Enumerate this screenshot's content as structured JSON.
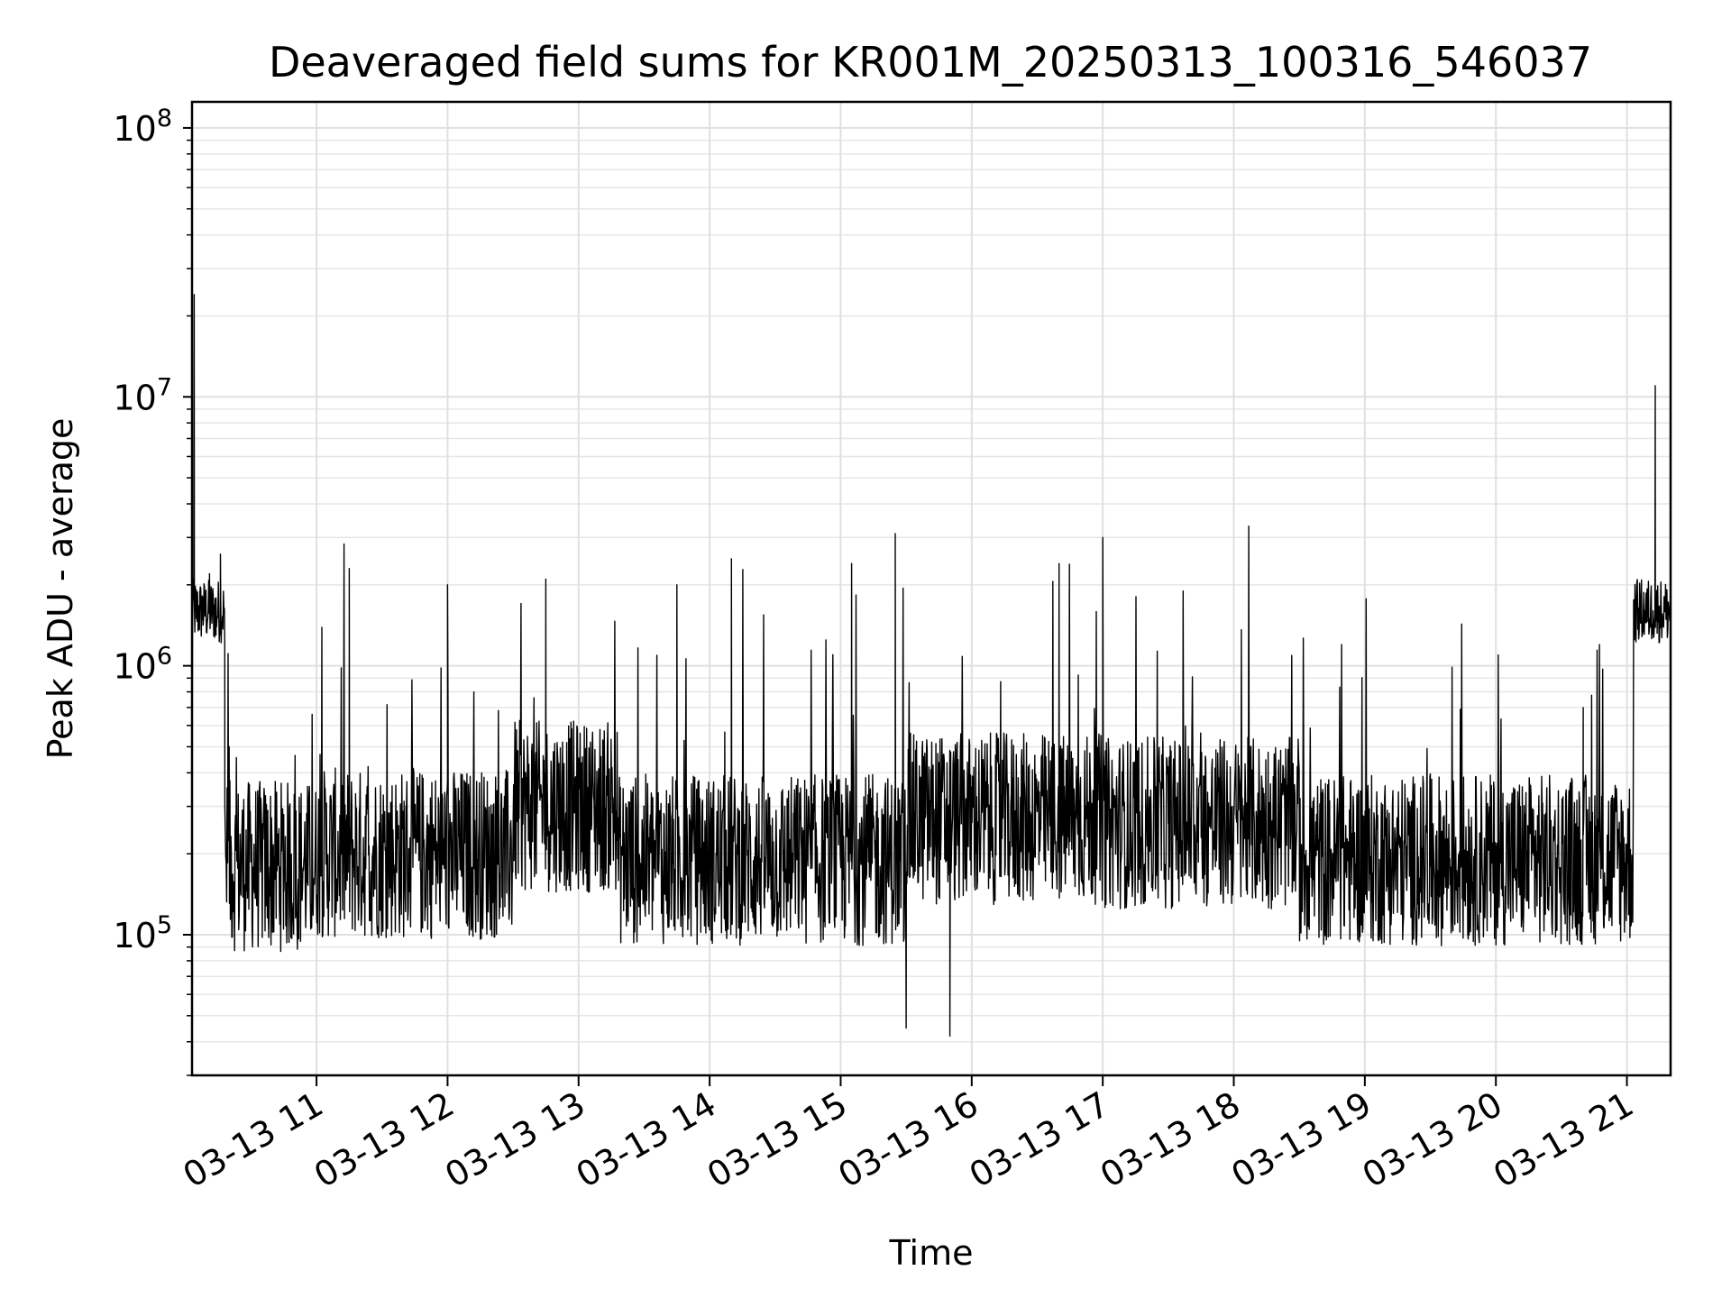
{
  "chart_data": {
    "type": "line",
    "title": "Deaveraged field sums for KR001M_20250313_100316_546037",
    "xlabel": "Time",
    "ylabel": "Peak ADU - average",
    "yscale": "log",
    "ylim": [
      30000,
      125000000
    ],
    "xlim": [
      "2025-03-13 10:03",
      "2025-03-13 21:20"
    ],
    "grid": true,
    "line_color": "#000000",
    "x_ticks": [
      {
        "label": "03-13 11",
        "hour": 11
      },
      {
        "label": "03-13 12",
        "hour": 12
      },
      {
        "label": "03-13 13",
        "hour": 13
      },
      {
        "label": "03-13 14",
        "hour": 14
      },
      {
        "label": "03-13 15",
        "hour": 15
      },
      {
        "label": "03-13 16",
        "hour": 16
      },
      {
        "label": "03-13 17",
        "hour": 17
      },
      {
        "label": "03-13 18",
        "hour": 18
      },
      {
        "label": "03-13 19",
        "hour": 19
      },
      {
        "label": "03-13 20",
        "hour": 20
      },
      {
        "label": "03-13 21",
        "hour": 21
      }
    ],
    "y_ticks": [
      {
        "base": "10",
        "exp": "5",
        "value": 100000
      },
      {
        "base": "10",
        "exp": "6",
        "value": 1000000
      },
      {
        "base": "10",
        "exp": "7",
        "value": 10000000
      },
      {
        "base": "10",
        "exp": "8",
        "value": 100000000
      }
    ],
    "series": [
      {
        "values_summary": "noisy signal ~1-3e5 baseline with spikes; ~1.5e6 at both ends",
        "points": [
          [
            "2025-03-13 10:03",
            300000
          ],
          [
            "2025-03-13 10:04",
            24000000
          ],
          [
            "2025-03-13 10:05",
            1500000
          ],
          [
            "2025-03-13 10:08",
            1800000
          ],
          [
            "2025-03-13 10:11",
            2200000
          ],
          [
            "2025-03-13 10:14",
            1300000
          ],
          [
            "2025-03-13 10:16",
            2600000
          ],
          [
            "2025-03-13 10:18",
            1200000
          ],
          [
            "2025-03-13 10:20",
            500000
          ],
          [
            "2025-03-13 10:45",
            280000
          ],
          [
            "2025-03-13 11:15",
            2300000
          ],
          [
            "2025-03-13 11:30",
            180000
          ],
          [
            "2025-03-13 12:00",
            2000000
          ],
          [
            "2025-03-13 12:45",
            2100000
          ],
          [
            "2025-03-13 13:00",
            250000
          ],
          [
            "2025-03-13 13:45",
            2000000
          ],
          [
            "2025-03-13 14:10",
            2500000
          ],
          [
            "2025-03-13 14:45",
            180000
          ],
          [
            "2025-03-13 15:05",
            2400000
          ],
          [
            "2025-03-13 15:25",
            3100000
          ],
          [
            "2025-03-13 15:30",
            45000
          ],
          [
            "2025-03-13 15:50",
            42000
          ],
          [
            "2025-03-13 16:00",
            280000
          ],
          [
            "2025-03-13 16:40",
            2400000
          ],
          [
            "2025-03-13 17:00",
            3000000
          ],
          [
            "2025-03-13 17:30",
            260000
          ],
          [
            "2025-03-13 18:00",
            300000
          ],
          [
            "2025-03-13 18:30",
            250000
          ],
          [
            "2025-03-13 19:00",
            220000
          ],
          [
            "2025-03-13 19:30",
            180000
          ],
          [
            "2025-03-13 20:00",
            200000
          ],
          [
            "2025-03-13 20:40",
            700000
          ],
          [
            "2025-03-13 21:00",
            200000
          ],
          [
            "2025-03-13 21:05",
            1500000
          ],
          [
            "2025-03-13 21:12",
            1600000
          ],
          [
            "2025-03-13 21:13",
            11000000
          ],
          [
            "2025-03-13 21:20",
            1600000
          ]
        ]
      }
    ]
  }
}
